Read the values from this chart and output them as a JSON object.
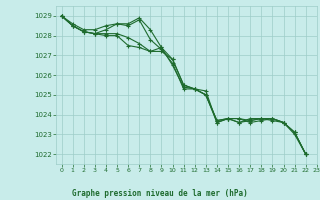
{
  "title": "Graphe pression niveau de la mer (hPa)",
  "bg_color": "#c8ecea",
  "grid_color": "#9ecdc8",
  "line_color": "#1e6b2e",
  "xlim": [
    -0.5,
    23
  ],
  "ylim": [
    1021.5,
    1029.5
  ],
  "yticks": [
    1022,
    1023,
    1024,
    1025,
    1026,
    1027,
    1028,
    1029
  ],
  "xticks": [
    0,
    1,
    2,
    3,
    4,
    5,
    6,
    7,
    8,
    9,
    10,
    11,
    12,
    13,
    14,
    15,
    16,
    17,
    18,
    19,
    20,
    21,
    22,
    23
  ],
  "series": [
    [
      1029.0,
      1028.6,
      1028.3,
      1028.3,
      1028.5,
      1028.6,
      1028.5,
      1028.8,
      1027.8,
      1027.3,
      1026.6,
      1025.3,
      1025.3,
      1025.2,
      1023.6,
      1023.8,
      1023.6,
      1023.7,
      1023.8,
      1023.8,
      1023.6,
      1023.1,
      1022.0
    ],
    [
      1029.0,
      1028.5,
      1028.2,
      1028.1,
      1028.3,
      1028.6,
      1028.6,
      1028.9,
      1028.3,
      1027.4,
      1026.5,
      1025.4,
      1025.3,
      1025.0,
      1023.6,
      1023.8,
      1023.6,
      1023.8,
      1023.8,
      1023.7,
      1023.6,
      1023.0,
      1022.0
    ],
    [
      1029.0,
      1028.5,
      1028.2,
      1028.1,
      1028.1,
      1028.1,
      1027.9,
      1027.6,
      1027.2,
      1027.4,
      1026.8,
      1025.5,
      1025.3,
      1025.0,
      1023.7,
      1023.8,
      1023.8,
      1023.6,
      1023.7,
      1023.8,
      1023.6,
      1023.1,
      1022.0
    ],
    [
      1029.0,
      1028.5,
      1028.2,
      1028.1,
      1028.0,
      1028.0,
      1027.5,
      1027.4,
      1027.2,
      1027.2,
      1026.8,
      1025.5,
      1025.3,
      1025.0,
      1023.7,
      1023.8,
      1023.8,
      1023.7,
      1023.8,
      1023.8,
      1023.6,
      1023.1,
      1022.0
    ]
  ]
}
